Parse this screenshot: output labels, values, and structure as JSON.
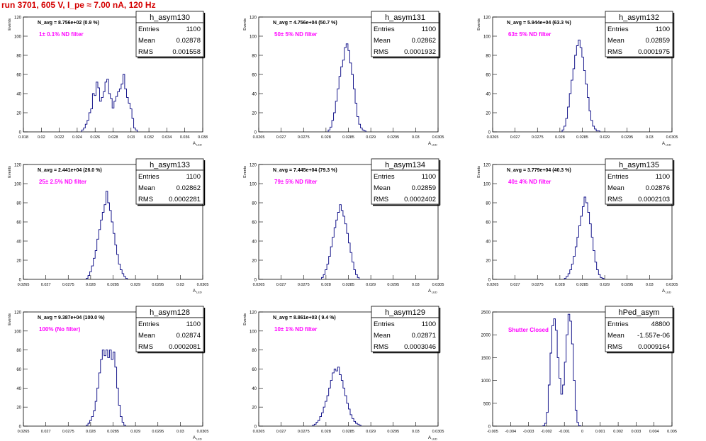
{
  "header": {
    "title": "run 3701,   605 V, I_pe ≈ 7.00 nA, 120 Hz"
  },
  "chart_data": [
    {
      "type": "bar",
      "name": "h_asym130",
      "navg_text": "N_avg = 8.756e+02 (0.9 %)",
      "filter_text": "1± 0.1% ND filter",
      "stats": {
        "entries": "1100",
        "mean": "0.02878",
        "rms": "0.001558"
      },
      "xlabel": "A_LED",
      "ylabel": "Events",
      "xlim": [
        0.018,
        0.038
      ],
      "ylim": [
        0,
        120
      ],
      "xticks": [
        0.018,
        0.02,
        0.022,
        0.024,
        0.026,
        0.028,
        0.03,
        0.032,
        0.034,
        0.036,
        0.038
      ],
      "xtick_labels": [
        "0.018",
        "0.02",
        "0.022",
        "0.024",
        "0.026",
        "0.028",
        "0.03",
        "0.032",
        "0.034",
        "0.036",
        "0.038"
      ],
      "yticks": [
        0,
        20,
        40,
        60,
        80,
        100,
        120
      ],
      "ytick_labels": [
        "0",
        "20",
        "40",
        "60",
        "80",
        "100",
        "120"
      ],
      "bins": {
        "start": 0.0245,
        "width": 0.0002,
        "counts": [
          2,
          4,
          8,
          12,
          20,
          24,
          40,
          38,
          52,
          46,
          32,
          36,
          42,
          52,
          55,
          40,
          35,
          25,
          32,
          37,
          42,
          45,
          50,
          60,
          45,
          36,
          30,
          24,
          14,
          4,
          2
        ]
      }
    },
    {
      "type": "bar",
      "name": "h_asym131",
      "navg_text": "N_avg = 4.756e+04 (50.7 %)",
      "filter_text": "50± 5% ND filter",
      "stats": {
        "entries": "1100",
        "mean": "0.02862",
        "rms": "0.0001932"
      },
      "xlabel": "A_LED",
      "ylabel": "Events",
      "xlim": [
        0.0265,
        0.0305
      ],
      "ylim": [
        0,
        120
      ],
      "xticks": [
        0.0265,
        0.027,
        0.0275,
        0.028,
        0.0285,
        0.029,
        0.0295,
        0.03,
        0.0305
      ],
      "xtick_labels": [
        "0.0265",
        "0.027",
        "0.0275",
        "0.028",
        "0.0285",
        "0.029",
        "0.0295",
        "0.03",
        "0.0305"
      ],
      "yticks": [
        0,
        20,
        40,
        60,
        80,
        100,
        120
      ],
      "ytick_labels": [
        "0",
        "20",
        "40",
        "60",
        "80",
        "100",
        "120"
      ],
      "bins": {
        "start": 0.02805,
        "width": 4e-05,
        "counts": [
          2,
          5,
          12,
          20,
          32,
          45,
          58,
          68,
          75,
          88,
          92,
          85,
          72,
          60,
          45,
          30,
          16,
          8,
          4,
          2,
          1
        ]
      }
    },
    {
      "type": "bar",
      "name": "h_asym132",
      "navg_text": "N_avg = 5.944e+04 (63.3 %)",
      "filter_text": "63± 5% ND filter",
      "stats": {
        "entries": "1100",
        "mean": "0.02859",
        "rms": "0.0001975"
      },
      "xlabel": "A_LED",
      "ylabel": "Events",
      "xlim": [
        0.0265,
        0.0305
      ],
      "ylim": [
        0,
        120
      ],
      "xticks": [
        0.0265,
        0.027,
        0.0275,
        0.028,
        0.0285,
        0.029,
        0.0295,
        0.03,
        0.0305
      ],
      "xtick_labels": [
        "0.0265",
        "0.027",
        "0.0275",
        "0.028",
        "0.0285",
        "0.029",
        "0.0295",
        "0.03",
        "0.0305"
      ],
      "yticks": [
        0,
        20,
        40,
        60,
        80,
        100,
        120
      ],
      "ytick_labels": [
        "0",
        "20",
        "40",
        "60",
        "80",
        "100",
        "120"
      ],
      "bins": {
        "start": 0.02805,
        "width": 4e-05,
        "counts": [
          2,
          6,
          14,
          26,
          40,
          54,
          66,
          80,
          90,
          96,
          88,
          78,
          64,
          50,
          36,
          22,
          12,
          6,
          3,
          1,
          1
        ]
      }
    },
    {
      "type": "bar",
      "name": "h_asym133",
      "navg_text": "N_avg = 2.441e+04 (26.0 %)",
      "filter_text": "25± 2.5% ND filter",
      "stats": {
        "entries": "1100",
        "mean": "0.02862",
        "rms": "0.0002281"
      },
      "xlabel": "A_LED",
      "ylabel": "Events",
      "xlim": [
        0.0265,
        0.0305
      ],
      "ylim": [
        0,
        120
      ],
      "xticks": [
        0.0265,
        0.027,
        0.0275,
        0.028,
        0.0285,
        0.029,
        0.0295,
        0.03,
        0.0305
      ],
      "xtick_labels": [
        "0.0265",
        "0.027",
        "0.0275",
        "0.028",
        "0.0285",
        "0.029",
        "0.0295",
        "0.03",
        "0.0305"
      ],
      "yticks": [
        0,
        20,
        40,
        60,
        80,
        100,
        120
      ],
      "ytick_labels": [
        "0",
        "20",
        "40",
        "60",
        "80",
        "100",
        "120"
      ],
      "bins": {
        "start": 0.0279,
        "width": 4e-05,
        "counts": [
          1,
          4,
          8,
          14,
          22,
          30,
          42,
          52,
          62,
          70,
          78,
          92,
          80,
          72,
          60,
          48,
          36,
          26,
          16,
          10,
          6,
          3,
          1
        ]
      }
    },
    {
      "type": "bar",
      "name": "h_asym134",
      "navg_text": "N_avg = 7.445e+04 (79.3 %)",
      "filter_text": "79± 5% ND filter",
      "stats": {
        "entries": "1100",
        "mean": "0.02859",
        "rms": "0.0002402"
      },
      "xlabel": "A_LED",
      "ylabel": "Events",
      "xlim": [
        0.0265,
        0.0305
      ],
      "ylim": [
        0,
        120
      ],
      "xticks": [
        0.0265,
        0.027,
        0.0275,
        0.028,
        0.0285,
        0.029,
        0.0295,
        0.03,
        0.0305
      ],
      "xtick_labels": [
        "0.0265",
        "0.027",
        "0.0275",
        "0.028",
        "0.0285",
        "0.029",
        "0.0295",
        "0.03",
        "0.0305"
      ],
      "yticks": [
        0,
        20,
        40,
        60,
        80,
        100,
        120
      ],
      "ytick_labels": [
        "0",
        "20",
        "40",
        "60",
        "80",
        "100",
        "120"
      ],
      "bins": {
        "start": 0.0279,
        "width": 4e-05,
        "counts": [
          2,
          5,
          10,
          16,
          24,
          34,
          44,
          54,
          62,
          70,
          78,
          72,
          66,
          58,
          48,
          38,
          28,
          18,
          10,
          5,
          2
        ]
      }
    },
    {
      "type": "bar",
      "name": "h_asym135",
      "navg_text": "N_avg = 3.779e+04 (40.3 %)",
      "filter_text": "40± 4% ND filter",
      "stats": {
        "entries": "1100",
        "mean": "0.02876",
        "rms": "0.0002103"
      },
      "xlabel": "A_LED",
      "ylabel": "Events",
      "xlim": [
        0.0265,
        0.0305
      ],
      "ylim": [
        0,
        120
      ],
      "xticks": [
        0.0265,
        0.027,
        0.0275,
        0.028,
        0.0285,
        0.029,
        0.0295,
        0.03,
        0.0305
      ],
      "xtick_labels": [
        "0.0265",
        "0.027",
        "0.0275",
        "0.028",
        "0.0285",
        "0.029",
        "0.0295",
        "0.03",
        "0.0305"
      ],
      "yticks": [
        0,
        20,
        40,
        60,
        80,
        100,
        120
      ],
      "ytick_labels": [
        "0",
        "20",
        "40",
        "60",
        "80",
        "100",
        "120"
      ],
      "bins": {
        "start": 0.0281,
        "width": 4e-05,
        "counts": [
          1,
          3,
          6,
          10,
          16,
          24,
          34,
          44,
          56,
          66,
          76,
          86,
          80,
          70,
          58,
          44,
          30,
          18,
          10,
          5,
          2,
          1
        ]
      }
    },
    {
      "type": "bar",
      "name": "h_asym128",
      "navg_text": "N_avg = 9.387e+04 (100.0 %)",
      "filter_text": "100% (No filter)",
      "stats": {
        "entries": "1100",
        "mean": "0.02874",
        "rms": "0.0002081"
      },
      "xlabel": "A_LED",
      "ylabel": "Events",
      "xlim": [
        0.0265,
        0.0305
      ],
      "ylim": [
        0,
        120
      ],
      "xticks": [
        0.0265,
        0.027,
        0.0275,
        0.028,
        0.0285,
        0.029,
        0.0295,
        0.03,
        0.0305
      ],
      "xtick_labels": [
        "0.0265",
        "0.027",
        "0.0275",
        "0.028",
        "0.0285",
        "0.029",
        "0.0295",
        "0.03",
        "0.0305"
      ],
      "yticks": [
        0,
        20,
        40,
        60,
        80,
        100,
        120
      ],
      "ytick_labels": [
        "0",
        "20",
        "40",
        "60",
        "80",
        "100",
        "120"
      ],
      "bins": {
        "start": 0.0279,
        "width": 4e-05,
        "counts": [
          1,
          3,
          6,
          10,
          16,
          26,
          40,
          56,
          70,
          80,
          74,
          80,
          72,
          80,
          70,
          78,
          62,
          40,
          22,
          10,
          4,
          1
        ]
      }
    },
    {
      "type": "bar",
      "name": "h_asym129",
      "navg_text": "N_avg = 8.861e+03 ( 9.4 %)",
      "filter_text": "10± 1% ND filter",
      "stats": {
        "entries": "1100",
        "mean": "0.02871",
        "rms": "0.0003046"
      },
      "xlabel": "A_LED",
      "ylabel": "Events",
      "xlim": [
        0.0265,
        0.0305
      ],
      "ylim": [
        0,
        120
      ],
      "xticks": [
        0.0265,
        0.027,
        0.0275,
        0.028,
        0.0285,
        0.029,
        0.0295,
        0.03,
        0.0305
      ],
      "xtick_labels": [
        "0.0265",
        "0.027",
        "0.0275",
        "0.028",
        "0.0285",
        "0.029",
        "0.0295",
        "0.03",
        "0.0305"
      ],
      "yticks": [
        0,
        20,
        40,
        60,
        80,
        100,
        120
      ],
      "ytick_labels": [
        "0",
        "20",
        "40",
        "60",
        "80",
        "100",
        "120"
      ],
      "bins": {
        "start": 0.0277,
        "width": 4e-05,
        "counts": [
          1,
          2,
          4,
          6,
          10,
          14,
          20,
          26,
          32,
          40,
          48,
          56,
          60,
          58,
          62,
          54,
          48,
          40,
          32,
          24,
          18,
          12,
          8,
          5,
          3,
          2,
          1
        ]
      }
    },
    {
      "type": "bar",
      "name": "hPed_asym",
      "navg_text": "",
      "filter_text": "Shutter Closed",
      "stats": {
        "entries": "48800",
        "mean": "-1.557e-06",
        "rms": "0.0009164"
      },
      "xlabel": "",
      "ylabel": "",
      "xlim": [
        -0.005,
        0.005
      ],
      "ylim": [
        0,
        2500
      ],
      "xticks": [
        -0.005,
        -0.004,
        -0.003,
        -0.002,
        -0.001,
        0,
        0.001,
        0.002,
        0.003,
        0.004,
        0.005
      ],
      "xtick_labels": [
        "-0.005",
        "-0.004",
        "-0.003",
        "-0.002",
        "-0.001",
        "0",
        "0.001",
        "0.002",
        "0.003",
        "0.004",
        "0.005"
      ],
      "yticks": [
        0,
        500,
        1000,
        1500,
        2000,
        2500
      ],
      "ytick_labels": [
        "0",
        "500",
        "1000",
        "1500",
        "2000",
        "2500"
      ],
      "bins": {
        "start": -0.0022,
        "width": 0.0001,
        "counts": [
          10,
          60,
          300,
          900,
          1600,
          2200,
          2350,
          2100,
          1500,
          1050,
          700,
          900,
          1400,
          2000,
          2450,
          2300,
          1800,
          1000,
          350,
          80,
          10
        ]
      }
    }
  ]
}
